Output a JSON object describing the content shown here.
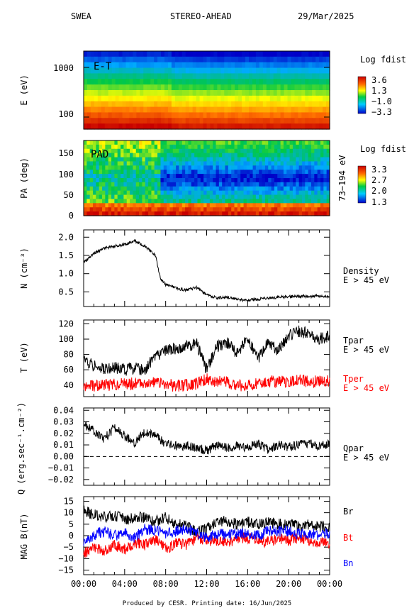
{
  "header": {
    "instrument": "SWEA",
    "spacecraft": "STEREO-AHEAD",
    "date": "29/Mar/2025"
  },
  "footer": "Produced by CESR.   Printing date: 16/Jun/2025",
  "chart_data": [
    {
      "type": "heatmap",
      "label": "E-T",
      "ylabel": "E (eV)",
      "y_scale": "log",
      "y_ticks": [
        "1000",
        "100"
      ],
      "colorbar_title": "Log fdist",
      "colorbar_ticks": [
        "3.6",
        "1.3",
        "−1.0",
        "−3.3"
      ]
    },
    {
      "type": "heatmap",
      "label": "PAD",
      "ylabel": "PA (deg)",
      "ylim": [
        0,
        180
      ],
      "y_ticks": [
        "150",
        "100",
        "50",
        "0"
      ],
      "right_label": "73−194 eV",
      "colorbar_title": "Log fdist",
      "colorbar_ticks": [
        "3.3",
        "2.7",
        "2.0",
        "1.3"
      ]
    },
    {
      "type": "line",
      "ylabel": "N (cm⁻³)",
      "ylim": [
        0.1,
        2.2
      ],
      "y_ticks": [
        0.5,
        1.0,
        1.5,
        2.0
      ],
      "y_tick_labels": [
        "0.5",
        "1.0",
        "1.5",
        "2.0"
      ],
      "series": [
        {
          "name": "Density",
          "color": "#000000",
          "x": [
            0,
            1,
            2,
            3,
            4,
            5,
            6,
            7,
            7.5,
            8,
            9,
            10,
            11,
            12,
            13,
            14,
            15,
            16,
            17,
            18,
            19,
            20,
            21,
            22,
            23,
            24
          ],
          "y": [
            1.3,
            1.55,
            1.7,
            1.75,
            1.8,
            1.9,
            1.75,
            1.5,
            0.85,
            0.7,
            0.6,
            0.55,
            0.62,
            0.42,
            0.33,
            0.36,
            0.3,
            0.27,
            0.3,
            0.33,
            0.35,
            0.37,
            0.38,
            0.37,
            0.39,
            0.38
          ]
        }
      ],
      "annotation": [
        "Density",
        "E > 45 eV"
      ]
    },
    {
      "type": "line",
      "ylabel": "T (eV)",
      "ylim": [
        25,
        125
      ],
      "y_ticks": [
        40,
        60,
        80,
        100,
        120
      ],
      "y_tick_labels": [
        "40",
        "60",
        "80",
        "100",
        "120"
      ],
      "series": [
        {
          "name": "Tpar",
          "color": "#000000",
          "x": [
            0,
            1,
            2,
            3,
            4,
            5,
            6,
            7,
            8,
            9,
            10,
            11,
            12,
            13,
            14,
            15,
            16,
            17,
            18,
            19,
            20,
            21,
            22,
            23,
            24
          ],
          "y": [
            75,
            65,
            60,
            63,
            60,
            62,
            60,
            78,
            85,
            88,
            90,
            95,
            60,
            90,
            95,
            80,
            100,
            75,
            95,
            85,
            105,
            110,
            108,
            100,
            105
          ]
        },
        {
          "name": "Tper",
          "color": "#ff0000",
          "x": [
            0,
            1,
            2,
            3,
            4,
            5,
            6,
            7,
            8,
            9,
            10,
            11,
            12,
            13,
            14,
            15,
            16,
            17,
            18,
            19,
            20,
            21,
            22,
            23,
            24
          ],
          "y": [
            38,
            39,
            40,
            41,
            42,
            42,
            43,
            44,
            41,
            39,
            40,
            42,
            48,
            45,
            44,
            40,
            38,
            44,
            45,
            44,
            45,
            48,
            44,
            46,
            45
          ]
        }
      ],
      "annotation": [
        "Tpar",
        "E > 45 eV",
        "Tper",
        "E > 45 eV"
      ]
    },
    {
      "type": "line",
      "ylabel": "Q (erg.sec⁻¹.cm⁻²)",
      "ylim": [
        -0.025,
        0.042
      ],
      "y_ticks": [
        -0.02,
        -0.01,
        0.0,
        0.01,
        0.02,
        0.03,
        0.04
      ],
      "y_tick_labels": [
        "−0.02",
        "−0.01",
        "0.00",
        "0.01",
        "0.02",
        "0.03",
        "0.04"
      ],
      "series": [
        {
          "name": "Qpar",
          "color": "#000000",
          "x": [
            0,
            1,
            2,
            3,
            4,
            5,
            6,
            7,
            8,
            9,
            10,
            11,
            12,
            13,
            14,
            15,
            16,
            17,
            18,
            19,
            20,
            21,
            22,
            23,
            24
          ],
          "y": [
            0.028,
            0.022,
            0.015,
            0.025,
            0.018,
            0.012,
            0.022,
            0.018,
            0.011,
            0.009,
            0.009,
            0.008,
            0.005,
            0.01,
            0.007,
            0.009,
            0.008,
            0.011,
            0.006,
            0.01,
            0.008,
            0.01,
            0.011,
            0.009,
            0.011
          ]
        }
      ],
      "annotation": [
        "Qpar",
        "E > 45 eV"
      ]
    },
    {
      "type": "line",
      "ylabel": "MAG B(nT)",
      "ylim": [
        -17,
        17
      ],
      "y_ticks": [
        -15,
        -10,
        -5,
        0,
        5,
        10,
        15
      ],
      "y_tick_labels": [
        "−15",
        "−10",
        "−5",
        "0",
        "5",
        "10",
        "15"
      ],
      "xlabel_ticks": [
        "00:00",
        "04:00",
        "08:00",
        "12:00",
        "16:00",
        "20:00",
        "00:00"
      ],
      "series": [
        {
          "name": "Br",
          "color": "#000000",
          "x": [
            0,
            1,
            2,
            3,
            4,
            5,
            6,
            7,
            8,
            9,
            10,
            11,
            12,
            13,
            14,
            15,
            16,
            17,
            18,
            19,
            20,
            21,
            22,
            23,
            24
          ],
          "y": [
            11,
            9,
            8,
            9,
            7,
            8,
            8,
            6,
            8,
            5,
            4,
            2,
            3,
            6,
            6,
            5,
            6,
            5,
            6,
            5,
            5,
            4,
            5,
            4,
            4
          ]
        },
        {
          "name": "Bt",
          "color": "#ff0000",
          "x": [
            0,
            1,
            2,
            3,
            4,
            5,
            6,
            7,
            8,
            9,
            10,
            11,
            12,
            13,
            14,
            15,
            16,
            17,
            18,
            19,
            20,
            21,
            22,
            23,
            24
          ],
          "y": [
            -8,
            -5,
            -7,
            -4,
            -6,
            -3,
            -4,
            -2,
            -6,
            -3,
            -4,
            -1,
            -2,
            -2,
            -3,
            -1,
            -1,
            -2,
            -3,
            -1,
            -2,
            -1,
            -2,
            -3,
            -3
          ]
        },
        {
          "name": "Bn",
          "color": "#0000ff",
          "x": [
            0,
            1,
            2,
            3,
            4,
            5,
            6,
            7,
            8,
            9,
            10,
            11,
            12,
            13,
            14,
            15,
            16,
            17,
            18,
            19,
            20,
            21,
            22,
            23,
            24
          ],
          "y": [
            -3,
            0,
            2,
            0,
            1,
            -1,
            3,
            2,
            1,
            2,
            3,
            1,
            -1,
            1,
            0,
            1,
            1,
            0,
            2,
            2,
            2,
            1,
            1,
            0,
            1
          ]
        }
      ],
      "annotation": [
        "Br",
        "Bt",
        "Bn"
      ]
    }
  ],
  "colors": {
    "colorbar_top": "#ff0000",
    "colorbar_bottom": "#0000cc",
    "density": "#000000",
    "tper": "#ff0000",
    "bn": "#0000ff"
  }
}
